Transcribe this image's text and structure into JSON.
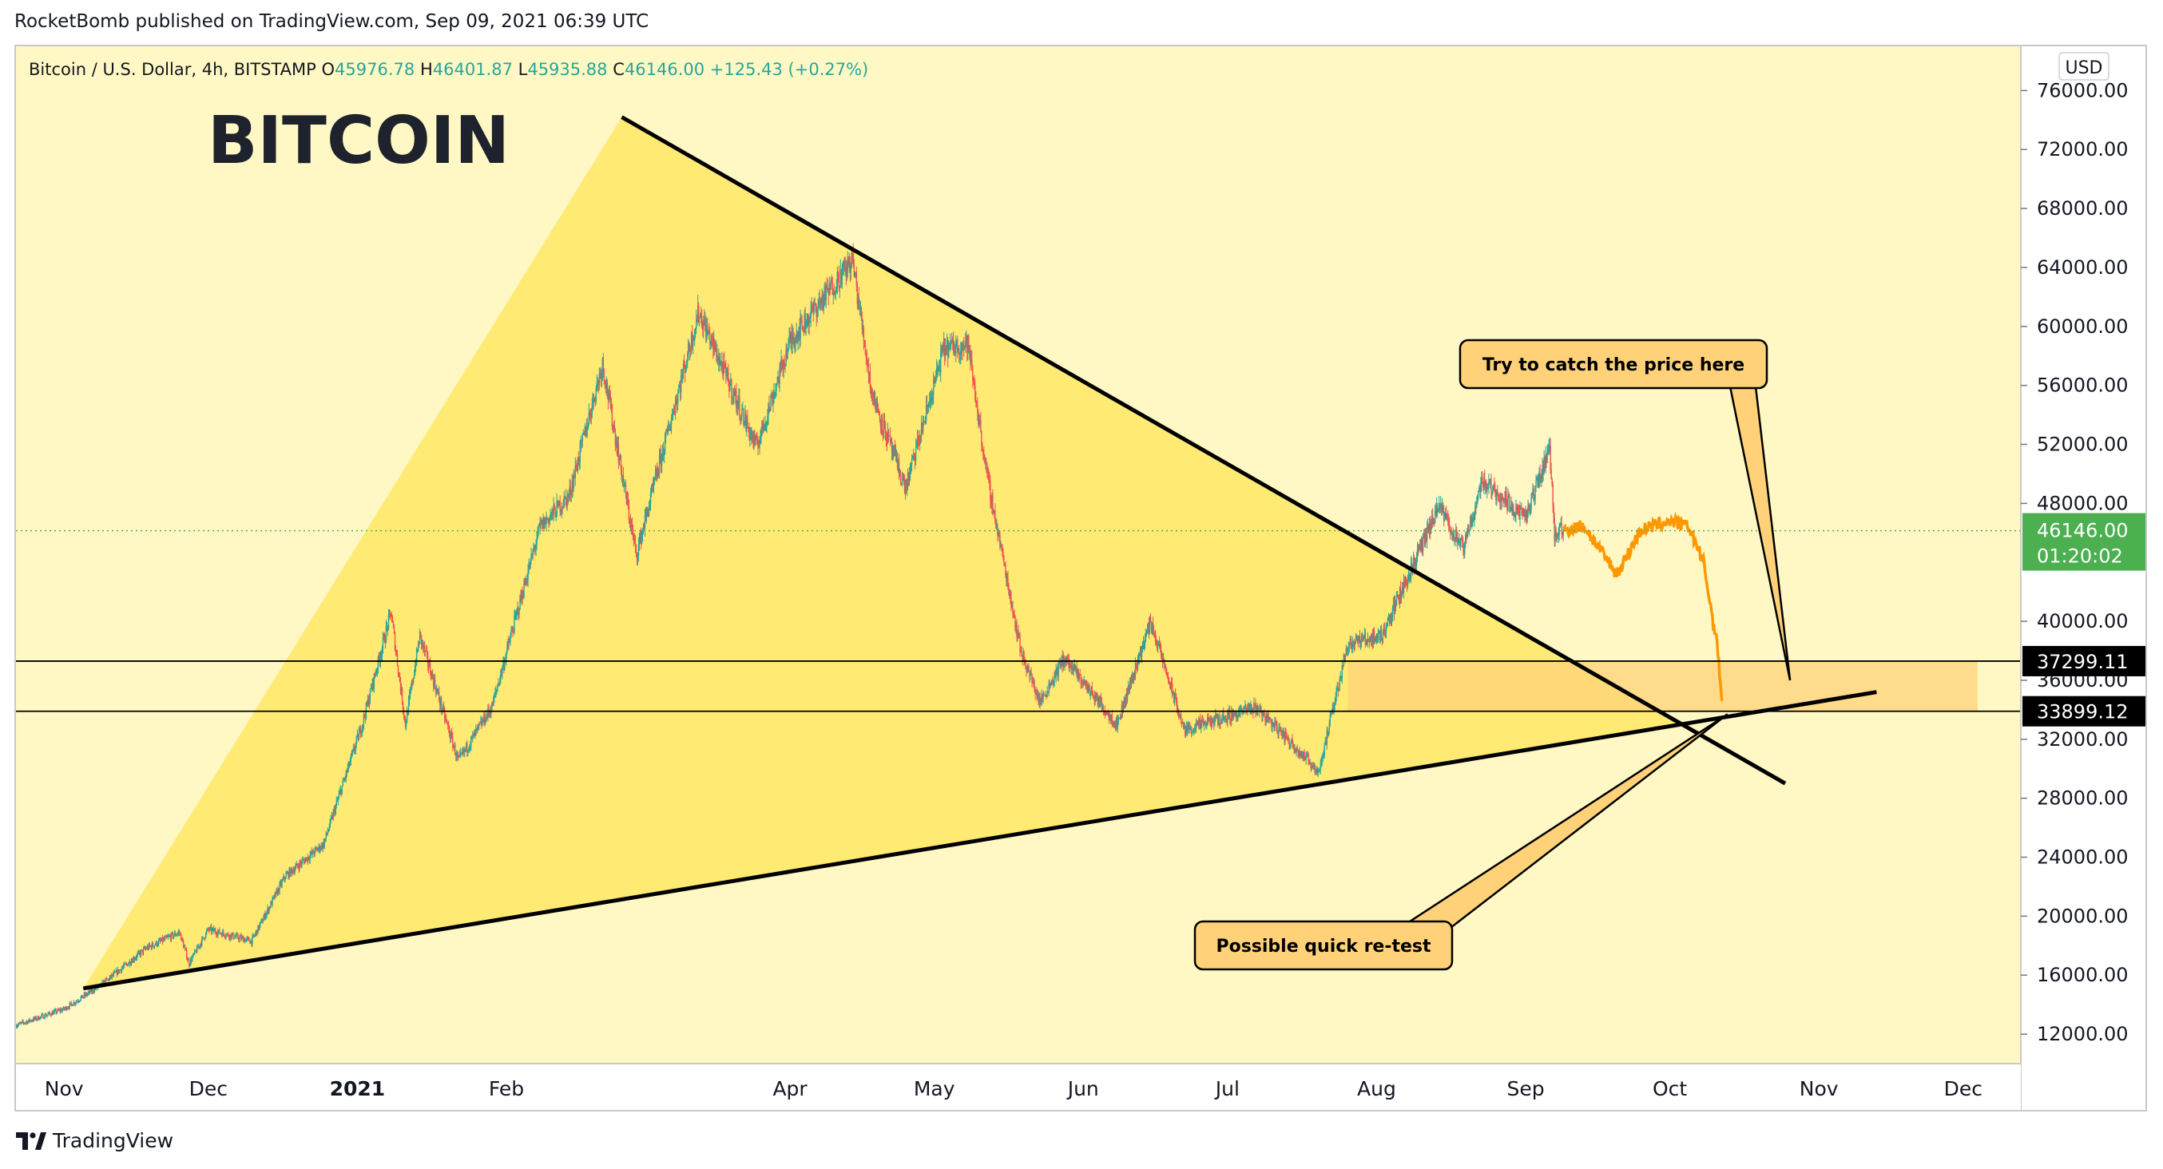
{
  "publisher_line": "RocketBomb published on TradingView.com, Sep 09, 2021 06:39 UTC",
  "footer": {
    "brand": "TradingView",
    "logo_icon": "tradingview-logo-icon"
  },
  "colors": {
    "background": "#fff8c4",
    "triangle_fill": "#ffe24a",
    "zone_fill": "#ffd27a",
    "candle_up": "#26a69a",
    "candle_down": "#ef5350",
    "projection": "#ff9800",
    "trendline": "#000000",
    "last_price_badge": "#4caf50",
    "callout_fill": "#ffd27a"
  },
  "chart_data": {
    "type": "candlestick",
    "symbol_line": {
      "name": "Bitcoin / U.S. Dollar, 4h, BITSTAMP",
      "open_label": "O",
      "open": "45976.78",
      "high_label": "H",
      "high": "46401.87",
      "low_label": "L",
      "low": "45935.88",
      "close_label": "C",
      "close": "46146.00",
      "change": "+125.43 (+0.27%)"
    },
    "title": "BITCOIN",
    "currency": "USD",
    "x_range": [
      "2020-10-22",
      "2021-12-13"
    ],
    "y_range": [
      10000,
      79000
    ],
    "x_ticks": [
      {
        "label": "Nov",
        "date": "2020-11-01"
      },
      {
        "label": "Dec",
        "date": "2020-12-01"
      },
      {
        "label": "2021",
        "date": "2021-01-01",
        "bold": true
      },
      {
        "label": "Feb",
        "date": "2021-02-01"
      },
      {
        "label": "Apr",
        "date": "2021-04-01"
      },
      {
        "label": "May",
        "date": "2021-05-01"
      },
      {
        "label": "Jun",
        "date": "2021-06-01"
      },
      {
        "label": "Jul",
        "date": "2021-07-01"
      },
      {
        "label": "Aug",
        "date": "2021-08-01"
      },
      {
        "label": "Sep",
        "date": "2021-09-01"
      },
      {
        "label": "Oct",
        "date": "2021-10-01"
      },
      {
        "label": "Nov",
        "date": "2021-11-01"
      },
      {
        "label": "Dec",
        "date": "2021-12-01"
      }
    ],
    "y_ticks": [
      "12000.00",
      "16000.00",
      "20000.00",
      "24000.00",
      "28000.00",
      "32000.00",
      "36000.00",
      "40000.00",
      "48000.00",
      "52000.00",
      "56000.00",
      "60000.00",
      "64000.00",
      "68000.00",
      "72000.00",
      "76000.00"
    ],
    "price_path": [
      [
        "2020-10-22",
        12600
      ],
      [
        "2020-11-01",
        13700
      ],
      [
        "2020-11-09",
        15400
      ],
      [
        "2020-11-18",
        17800
      ],
      [
        "2020-11-25",
        18900
      ],
      [
        "2020-11-27",
        16800
      ],
      [
        "2020-12-01",
        19100
      ],
      [
        "2020-12-10",
        18300
      ],
      [
        "2020-12-17",
        22700
      ],
      [
        "2020-12-25",
        24900
      ],
      [
        "2021-01-02",
        33000
      ],
      [
        "2021-01-08",
        40600
      ],
      [
        "2021-01-11",
        33000
      ],
      [
        "2021-01-14",
        39000
      ],
      [
        "2021-01-22",
        30500
      ],
      [
        "2021-01-29",
        34200
      ],
      [
        "2021-02-08",
        46400
      ],
      [
        "2021-02-14",
        48500
      ],
      [
        "2021-02-21",
        57500
      ],
      [
        "2021-02-28",
        44500
      ],
      [
        "2021-03-13",
        61000
      ],
      [
        "2021-03-25",
        51800
      ],
      [
        "2021-04-01",
        59000
      ],
      [
        "2021-04-14",
        64500
      ],
      [
        "2021-04-18",
        55500
      ],
      [
        "2021-04-25",
        49000
      ],
      [
        "2021-05-03",
        58500
      ],
      [
        "2021-05-08",
        58800
      ],
      [
        "2021-05-12",
        49800
      ],
      [
        "2021-05-19",
        38000
      ],
      [
        "2021-05-23",
        34500
      ],
      [
        "2021-05-28",
        37500
      ],
      [
        "2021-06-08",
        33000
      ],
      [
        "2021-06-15",
        40000
      ],
      [
        "2021-06-22",
        32600
      ],
      [
        "2021-07-07",
        34200
      ],
      [
        "2021-07-20",
        29800
      ],
      [
        "2021-07-26",
        38500
      ],
      [
        "2021-08-02",
        39000
      ],
      [
        "2021-08-14",
        47800
      ],
      [
        "2021-08-19",
        44800
      ],
      [
        "2021-08-23",
        49600
      ],
      [
        "2021-09-01",
        47000
      ],
      [
        "2021-09-06",
        51800
      ],
      [
        "2021-09-07",
        46000
      ],
      [
        "2021-09-09",
        46146
      ]
    ],
    "projection_path": [
      [
        "2021-09-09",
        46146
      ],
      [
        "2021-09-13",
        46500
      ],
      [
        "2021-09-20",
        43200
      ],
      [
        "2021-09-25",
        46200
      ],
      [
        "2021-10-01",
        46800
      ],
      [
        "2021-10-05",
        46400
      ],
      [
        "2021-10-08",
        44000
      ],
      [
        "2021-10-11",
        38000
      ],
      [
        "2021-10-12",
        34000
      ]
    ],
    "triangle_upper_line": [
      [
        "2021-02-25",
        74200
      ],
      [
        "2021-10-25",
        29000
      ]
    ],
    "triangle_lower_line": [
      [
        "2020-11-05",
        15100
      ],
      [
        "2021-11-13",
        35200
      ]
    ],
    "bull_wedge_left_edge": [
      [
        "2020-11-05",
        15100
      ],
      [
        "2021-02-25",
        74200
      ]
    ],
    "horizontal_levels": [
      {
        "value": 37299.11,
        "label": "37299.11"
      },
      {
        "value": 33899.12,
        "label": "33899.12"
      }
    ],
    "zone": {
      "from": "2021-07-26",
      "to": "2021-12-04",
      "low": 33899.12,
      "high": 37299.11
    },
    "last_price": {
      "value": 46146,
      "label": "46146.00",
      "countdown": "01:20:02"
    },
    "annotations": [
      {
        "id": "catch",
        "text": "Try to catch the price here",
        "target": [
          "2021-10-26",
          36000
        ]
      },
      {
        "id": "retest",
        "text": "Possible quick re-test",
        "target": [
          "2021-10-13",
          33700
        ]
      }
    ]
  }
}
